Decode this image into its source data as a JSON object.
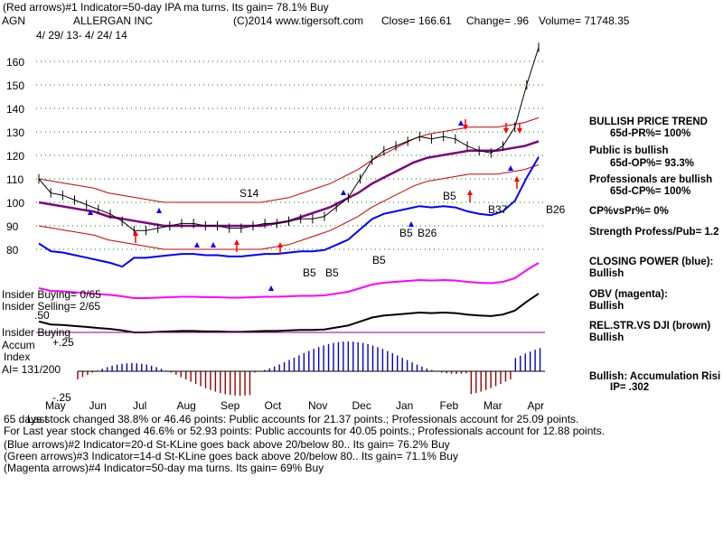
{
  "header": {
    "line1": "(Red arrows)#1 Indicator=50-day IPA ma turns. Its gain= 78.1% Buy",
    "ticker": "AGN",
    "company": "ALLERGAN INC",
    "source": "(C)2014 www.tigersoft.com",
    "close": "Close= 166.61",
    "change": "Change= .96",
    "volume": "Volume= 71748.35",
    "date_range": "4/ 29/ 13- 4/ 24/ 14"
  },
  "right_panel": {
    "trend_title": "BULLISH PRICE TREND",
    "pr": "65d-PR%= 100%",
    "public": "Public is bullish",
    "op": "65d-OP%= 93.3%",
    "professionals": "Professionals are bullish",
    "cp": "65d-CP%= 100%",
    "cpvspr": "CP%vsPr%= 0%",
    "strength": "Strength Profess/Pub= 1.2",
    "closing_power": "CLOSING POWER (blue):",
    "closing_power_val": "Bullish",
    "obv": "OBV (magenta):",
    "obv_val": "Bullish",
    "relstr": "REL.STR.VS DJI (brown)",
    "relstr_val": "Bullish",
    "accum": "Bullish: Accumulation Risi",
    "ip": "IP= .302"
  },
  "left_labels": {
    "insider_buying": "Insider Buying= 0/65",
    "insider_selling": "Insider Selling= 2/65",
    "insider_buying_line": "Insider Buying",
    "accum": "Accum",
    "index": "Index",
    "ai": "AI= 131/200",
    "plus25": "+.25",
    "minus25": "-.25",
    "p50": ".50",
    "last": "Last"
  },
  "footer": {
    "l1": "65 days stock changed  38.8% or  46.46 points:  Public accounts for  21.37 points.;  Professionals account for  25.09 points.",
    "l2": "For Last year stock changed  46.6% or  52.93 points:  Public accounts for  40.05 points.;  Professionals account for  12.88 points.",
    "l3": "(Blue arrows)#2 Indicator=20-d St-KLine goes back above 20/below 80.. Its gain= 76.2% Buy",
    "l4": "(Green arrows)#3 Indicator=14-d St-KLine goes back above 20/below 80.. Its gain= 71.1% Buy",
    "l5": "(Magenta arrows)#4 Indicator=50-day ma turns. Its gain= 69% Buy"
  },
  "annotations": [
    "S14",
    "B5",
    "B26",
    "B5",
    "B37",
    "B26",
    "B5",
    "B5",
    "B5"
  ],
  "colors": {
    "price": "#000000",
    "band": "#cc0000",
    "ma": "#800080",
    "closing_power": "#0000ff",
    "obv": "#ff00ff",
    "relstr": "#000000",
    "accum_pos": "#0000cc",
    "accum_neg": "#990000",
    "grid": "#008000",
    "insider_line": "#800080"
  },
  "chart_data": {
    "type": "line",
    "title": "ALLERGAN INC",
    "xlabel": "",
    "ylabel": "",
    "ylim": [
      75,
      165
    ],
    "y_ticks": [
      80,
      90,
      100,
      110,
      120,
      130,
      140,
      150,
      160
    ],
    "x_ticks": [
      "May",
      "Jun",
      "Jul",
      "Aug",
      "Sep",
      "Oct",
      "Nov",
      "Dec",
      "Jan",
      "Feb",
      "Mar",
      "Apr"
    ],
    "series": [
      {
        "values": [
          110,
          104,
          103,
          101,
          99,
          97,
          95,
          92,
          88,
          88,
          89,
          90,
          91,
          91,
          90,
          90,
          89,
          89,
          90,
          91,
          91,
          92,
          93,
          93,
          94,
          98,
          102,
          110,
          118,
          122,
          124,
          126,
          128,
          127,
          128,
          127,
          124,
          122,
          121,
          124,
          132,
          150,
          166
        ]
      },
      {
        "values": [
          100,
          99,
          98,
          97,
          96,
          94,
          93,
          92,
          91,
          90,
          90,
          90,
          90,
          90,
          90,
          90,
          90,
          91,
          92,
          94,
          96,
          98,
          101,
          104,
          108,
          111,
          114,
          117,
          119,
          120,
          121,
          122,
          122,
          122,
          123,
          124,
          126
        ]
      }
    ],
    "accumulation_index_range": [
      -0.25,
      0.5
    ]
  }
}
